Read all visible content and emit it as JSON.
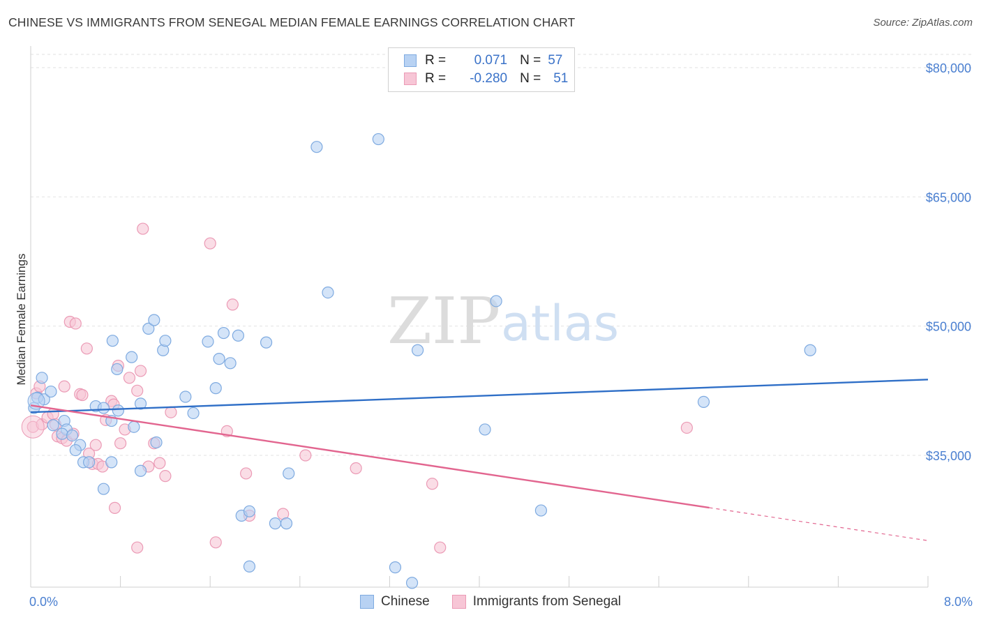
{
  "title": "CHINESE VS IMMIGRANTS FROM SENEGAL MEDIAN FEMALE EARNINGS CORRELATION CHART",
  "source": "Source: ZipAtlas.com",
  "watermark": {
    "zip": "ZIP",
    "atlas": "atlas"
  },
  "legend": {
    "rows": [
      {
        "r_label": "R =",
        "r_value": "0.071",
        "n_label": "N =",
        "n_value": "57",
        "color": "#a9c8f0"
      },
      {
        "r_label": "R =",
        "r_value": "-0.280",
        "n_label": "N =",
        "n_value": "51",
        "color": "#f5b8cc"
      }
    ]
  },
  "bottom_legend": [
    "Chinese",
    "Immigrants from Senegal"
  ],
  "colors": {
    "chinese_fill": "#b8d2f3",
    "chinese_stroke": "#7eaae0",
    "chinese_line": "#2f6fc7",
    "senegal_fill": "#f7c6d6",
    "senegal_stroke": "#eb9ab5",
    "senegal_line": "#e2658f",
    "tick_text": "#4a7fd0"
  },
  "chart_data": {
    "type": "scatter",
    "title": "CHINESE VS IMMIGRANTS FROM SENEGAL MEDIAN FEMALE EARNINGS CORRELATION CHART",
    "xlabel": "",
    "ylabel": "Median Female Earnings",
    "xlim": [
      0,
      8.0
    ],
    "ylim": [
      20000,
      81500
    ],
    "x_tick_labels": [
      "0.0%",
      "8.0%"
    ],
    "y_ticks": [
      35000,
      50000,
      65000,
      80000
    ],
    "y_tick_labels": [
      "$35,000",
      "$50,000",
      "$65,000",
      "$80,000"
    ],
    "grid": true,
    "legend_position": "top-center",
    "series": [
      {
        "name": "Chinese",
        "trend": {
          "x0": 0.0,
          "y0": 40000,
          "x1": 8.0,
          "y1": 43800,
          "dashed_from": null
        },
        "points": [
          [
            0.03,
            40500
          ],
          [
            0.06,
            41700
          ],
          [
            0.1,
            44000
          ],
          [
            0.12,
            41500
          ],
          [
            0.18,
            42400
          ],
          [
            0.2,
            38500
          ],
          [
            0.3,
            39000
          ],
          [
            0.32,
            38000
          ],
          [
            0.28,
            37500
          ],
          [
            0.37,
            37300
          ],
          [
            0.44,
            36200
          ],
          [
            0.4,
            35600
          ],
          [
            0.47,
            34200
          ],
          [
            0.52,
            34200
          ],
          [
            0.58,
            40700
          ],
          [
            0.65,
            40500
          ],
          [
            0.72,
            39000
          ],
          [
            0.73,
            48300
          ],
          [
            0.77,
            45000
          ],
          [
            0.78,
            40200
          ],
          [
            0.72,
            34200
          ],
          [
            0.65,
            31100
          ],
          [
            0.9,
            46400
          ],
          [
            0.92,
            38300
          ],
          [
            0.98,
            41000
          ],
          [
            1.05,
            49700
          ],
          [
            1.1,
            50700
          ],
          [
            0.98,
            33200
          ],
          [
            1.18,
            47200
          ],
          [
            1.2,
            48300
          ],
          [
            1.12,
            36500
          ],
          [
            1.38,
            41800
          ],
          [
            1.45,
            39900
          ],
          [
            1.58,
            48200
          ],
          [
            1.65,
            42800
          ],
          [
            1.68,
            46200
          ],
          [
            1.72,
            49200
          ],
          [
            1.78,
            45700
          ],
          [
            1.85,
            48900
          ],
          [
            1.88,
            28000
          ],
          [
            1.95,
            28500
          ],
          [
            2.1,
            48100
          ],
          [
            2.18,
            27100
          ],
          [
            2.28,
            27100
          ],
          [
            2.3,
            32900
          ],
          [
            2.55,
            70800
          ],
          [
            2.65,
            53900
          ],
          [
            3.1,
            71700
          ],
          [
            3.25,
            22000
          ],
          [
            3.4,
            20200
          ],
          [
            3.45,
            47200
          ],
          [
            4.05,
            38000
          ],
          [
            4.15,
            52900
          ],
          [
            4.55,
            28600
          ],
          [
            6.0,
            41200
          ],
          [
            6.95,
            47200
          ],
          [
            1.95,
            22100
          ]
        ]
      },
      {
        "name": "Immigrants from Senegal",
        "trend": {
          "x0": 0.0,
          "y0": 40800,
          "x1": 8.0,
          "y1": 25100,
          "dashed_from": 6.05
        },
        "points": [
          [
            0.02,
            38300
          ],
          [
            0.05,
            42200
          ],
          [
            0.08,
            43000
          ],
          [
            0.1,
            38600
          ],
          [
            0.15,
            39400
          ],
          [
            0.2,
            39800
          ],
          [
            0.22,
            38600
          ],
          [
            0.24,
            37200
          ],
          [
            0.28,
            37000
          ],
          [
            0.32,
            36700
          ],
          [
            0.3,
            43000
          ],
          [
            0.38,
            37500
          ],
          [
            0.35,
            50500
          ],
          [
            0.4,
            50300
          ],
          [
            0.44,
            42100
          ],
          [
            0.46,
            42000
          ],
          [
            0.5,
            47400
          ],
          [
            0.52,
            35200
          ],
          [
            0.55,
            34000
          ],
          [
            0.58,
            36200
          ],
          [
            0.6,
            34000
          ],
          [
            0.64,
            33700
          ],
          [
            0.67,
            39100
          ],
          [
            0.72,
            41300
          ],
          [
            0.74,
            40900
          ],
          [
            0.78,
            45400
          ],
          [
            0.8,
            36400
          ],
          [
            0.84,
            38000
          ],
          [
            0.88,
            44000
          ],
          [
            0.95,
            42500
          ],
          [
            0.98,
            44800
          ],
          [
            1.0,
            61300
          ],
          [
            1.05,
            33700
          ],
          [
            1.1,
            36400
          ],
          [
            1.15,
            34100
          ],
          [
            1.2,
            32600
          ],
          [
            1.25,
            40000
          ],
          [
            0.75,
            28900
          ],
          [
            0.95,
            24300
          ],
          [
            1.6,
            59600
          ],
          [
            1.65,
            24900
          ],
          [
            1.75,
            37800
          ],
          [
            1.8,
            52500
          ],
          [
            1.92,
            32900
          ],
          [
            1.95,
            28000
          ],
          [
            2.25,
            28200
          ],
          [
            2.45,
            35000
          ],
          [
            2.9,
            33500
          ],
          [
            3.58,
            31700
          ],
          [
            3.65,
            24300
          ],
          [
            5.85,
            38200
          ]
        ]
      }
    ]
  }
}
